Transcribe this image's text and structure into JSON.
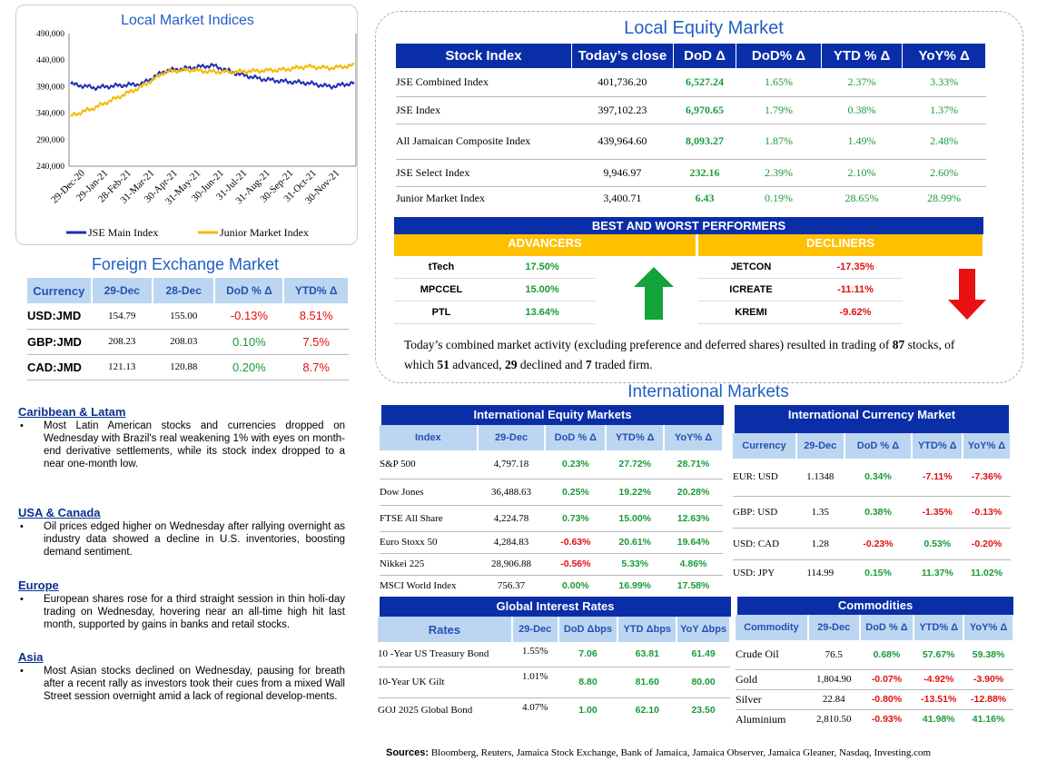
{
  "chart": {
    "title": "Local Market Indices",
    "y_ticks": [
      "490,000",
      "440,000",
      "390,000",
      "340,000",
      "290,000",
      "240,000"
    ],
    "x_ticks": [
      "29-Dec-20",
      "29-Jan-21",
      "28-Feb-21",
      "31-Mar-21",
      "30-Apr-21",
      "31-May-21",
      "30-Jun-21",
      "31-Jul-21",
      "31-Aug-21",
      "30-Sep-21",
      "31-Oct-21",
      "30-Nov-21"
    ],
    "legend": [
      "JSE Main Index",
      "Junior Market Index"
    ],
    "colors": {
      "main": "#1f2fb5",
      "junior": "#f5b800"
    }
  },
  "chart_data": {
    "type": "line",
    "title": "Local Market Indices",
    "x": [
      "29-Dec-20",
      "29-Jan-21",
      "28-Feb-21",
      "31-Mar-21",
      "30-Apr-21",
      "31-May-21",
      "30-Jun-21",
      "31-Jul-21",
      "31-Aug-21",
      "30-Sep-21",
      "31-Oct-21",
      "30-Nov-21",
      "29-Dec-21"
    ],
    "ylim": [
      240000,
      490000
    ],
    "series": [
      {
        "name": "JSE Main Index",
        "values": [
          395000,
          388000,
          392000,
          395000,
          420000,
          425000,
          430000,
          415000,
          405000,
          400000,
          397000,
          390000,
          397000
        ]
      },
      {
        "name": "Junior Market Index",
        "values": [
          335000,
          350000,
          370000,
          390000,
          418000,
          422000,
          418000,
          418000,
          420000,
          422000,
          428000,
          425000,
          430000
        ]
      }
    ]
  },
  "local": {
    "title": "Local Equity Market",
    "headers": [
      "Stock Index",
      "Today’s close",
      "DoD Δ",
      "DoD% Δ",
      "YTD % Δ",
      "YoY% Δ"
    ],
    "rows": [
      [
        "JSE Combined Index",
        "401,736.20",
        "6,527.24",
        "1.65%",
        "2.37%",
        "3.33%"
      ],
      [
        "JSE Index",
        "397,102.23",
        "6,970.65",
        "1.79%",
        "0.38%",
        "1.37%"
      ],
      [
        "All Jamaican Composite Index",
        "439,964.60",
        "8,093.27",
        "1.87%",
        "1.49%",
        "2.48%"
      ],
      [
        "JSE Select Index",
        "9,946.97",
        "232.16",
        "2.39%",
        "2.10%",
        "2.60%"
      ],
      [
        "Junior Market Index",
        "3,400.71",
        "6.43",
        "0.19%",
        "28.65%",
        "28.99%"
      ]
    ]
  },
  "performers": {
    "title": "BEST AND WORST PERFORMERS",
    "advancers_label": "ADVANCERS",
    "decliners_label": "DECLINERS",
    "advancers": [
      [
        "tTech",
        "17.50%"
      ],
      [
        "MPCCEL",
        "15.00%"
      ],
      [
        "PTL",
        "13.64%"
      ]
    ],
    "decliners": [
      [
        "JETCON",
        "-17.35%"
      ],
      [
        "ICREATE",
        "-11.11%"
      ],
      [
        "KREMI",
        "-9.62%"
      ]
    ]
  },
  "summary": {
    "part1": "Today’s combined market activity (excluding preference and deferred shares) resulted in trading of ",
    "total": "87",
    "part2": " stocks, of which ",
    "adv": "51",
    "part3": " advanced, ",
    "dec": "29",
    "part4": " declined and ",
    "firm": "7",
    "part5": " traded firm."
  },
  "fx": {
    "title": "Foreign Exchange Market",
    "headers": [
      "Currency",
      "29-Dec",
      "28-Dec",
      "DoD % Δ",
      "YTD% Δ"
    ],
    "rows": [
      [
        "USD:JMD",
        "154.79",
        "155.00",
        "-0.13%",
        "8.51%"
      ],
      [
        "GBP:JMD",
        "208.23",
        "208.03",
        "0.10%",
        "7.5%"
      ],
      [
        "CAD:JMD",
        "121.13",
        "120.88",
        "0.20%",
        "8.7%"
      ]
    ]
  },
  "news": [
    {
      "head": "Caribbean & Latam",
      "text": "Most Latin American stocks and currencies dropped on Wednesday with Brazil's real weakening 1% with eyes on month-end derivative settlements, while its stock index dropped to a near one-month low."
    },
    {
      "head": "USA & Canada",
      "text": "Oil prices edged higher on Wednesday after rallying overnight as industry data showed a decline in U.S. inventories, boosting demand sentiment."
    },
    {
      "head": "Europe",
      "text": "European shares rose for a third straight session in thin holi-day trading on Wednesday, hovering near an all-time high hit last month, supported by gains in banks and retail stocks."
    },
    {
      "head": "Asia",
      "text": "Most Asian stocks declined on Wednesday, pausing for breath after a recent rally as investors took their cues from a mixed Wall Street session overnight amid a lack of regional develop-ments."
    }
  ],
  "intl": {
    "title": "International Markets",
    "equity": {
      "title": "International Equity Markets",
      "headers": [
        "Index",
        "29-Dec",
        "DoD % Δ",
        "YTD% Δ",
        "YoY% Δ"
      ],
      "rows": [
        [
          "S&P 500",
          "4,797.18",
          "0.23%",
          "27.72%",
          "28.71%"
        ],
        [
          "Dow Jones",
          "36,488.63",
          "0.25%",
          "19.22%",
          "20.28%"
        ],
        [
          "FTSE All Share",
          "4,224.78",
          "0.73%",
          "15.00%",
          "12.63%"
        ],
        [
          "Euro Stoxx 50",
          "4,284.83",
          "-0.63%",
          "20.61%",
          "19.64%"
        ],
        [
          "Nikkei 225",
          "28,906.88",
          "-0.56%",
          "5.33%",
          "4.86%"
        ],
        [
          "MSCI World Index",
          "756.37",
          "0.00%",
          "16.99%",
          "17.58%"
        ]
      ]
    },
    "currency": {
      "title": "International Currency Market",
      "headers": [
        "Currency",
        "29-Dec",
        "DoD % Δ",
        "YTD% Δ",
        "YoY% Δ"
      ],
      "rows": [
        [
          "EUR: USD",
          "1.1348",
          "0.34%",
          "-7.11%",
          "-7.36%"
        ],
        [
          "GBP: USD",
          "1.35",
          "0.38%",
          "-1.35%",
          "-0.13%"
        ],
        [
          "USD: CAD",
          "1.28",
          "-0.23%",
          "0.53%",
          "-0.20%"
        ],
        [
          "USD: JPY",
          "114.99",
          "0.15%",
          "11.37%",
          "11.02%"
        ]
      ]
    },
    "rates": {
      "title": "Global Interest Rates",
      "headers": [
        "Rates",
        "29-Dec",
        "DoD Δbps",
        "YTD Δbps",
        "YoY Δbps"
      ],
      "rows": [
        [
          "10 -Year US Treasury Bond",
          "1.55%",
          "7.06",
          "63.81",
          "61.49"
        ],
        [
          "10-Year UK Gilt",
          "1.01%",
          "8.80",
          "81.60",
          "80.00"
        ],
        [
          "GOJ 2025 Global Bond",
          "4.07%",
          "1.00",
          "62.10",
          "23.50"
        ]
      ]
    },
    "commodities": {
      "title": "Commodities",
      "headers": [
        "Commodity",
        "29-Dec",
        "DoD % Δ",
        "YTD% Δ",
        "YoY% Δ"
      ],
      "rows": [
        [
          "Crude Oil",
          "76.5",
          "0.68%",
          "57.67%",
          "59.38%"
        ],
        [
          "Gold",
          "1,804.90",
          "-0.07%",
          "-4.92%",
          "-3.90%"
        ],
        [
          "Silver",
          "22.84",
          "-0.80%",
          "-13.51%",
          "-12.88%"
        ],
        [
          "Aluminium",
          "2,810.50",
          "-0.93%",
          "41.98%",
          "41.16%"
        ]
      ]
    }
  },
  "sources": {
    "label": "Sources:",
    "text": " Bloomberg, Reuters, Jamaica Stock Exchange, Bank of Jamaica, Jamaica Observer, Jamaica Gleaner, Nasdaq, Investing.com"
  }
}
